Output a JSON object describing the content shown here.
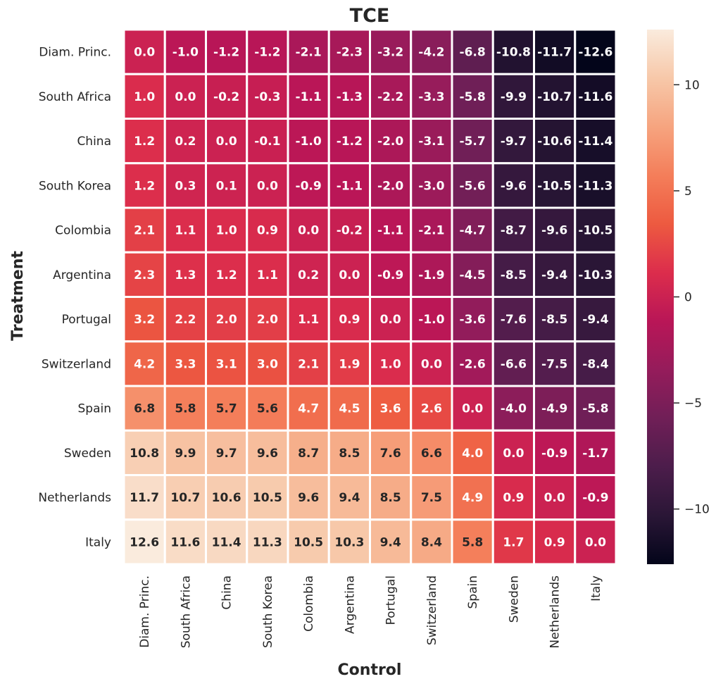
{
  "chart_data": {
    "type": "heatmap",
    "title": "TCE",
    "xlabel": "Control",
    "ylabel": "Treatment",
    "rows": [
      "Diam. Princ.",
      "South Africa",
      "China",
      "South Korea",
      "Colombia",
      "Argentina",
      "Portugal",
      "Switzerland",
      "Spain",
      "Sweden",
      "Netherlands",
      "Italy"
    ],
    "columns": [
      "Diam. Princ.",
      "South Africa",
      "China",
      "South Korea",
      "Colombia",
      "Argentina",
      "Portugal",
      "Switzerland",
      "Spain",
      "Sweden",
      "Netherlands",
      "Italy"
    ],
    "values": [
      [
        0.0,
        -1.0,
        -1.2,
        -1.2,
        -2.1,
        -2.3,
        -3.2,
        -4.2,
        -6.8,
        -10.8,
        -11.7,
        -12.6
      ],
      [
        1.0,
        0.0,
        -0.2,
        -0.3,
        -1.1,
        -1.3,
        -2.2,
        -3.3,
        -5.8,
        -9.9,
        -10.7,
        -11.6
      ],
      [
        1.2,
        0.2,
        0.0,
        -0.1,
        -1.0,
        -1.2,
        -2.0,
        -3.1,
        -5.7,
        -9.7,
        -10.6,
        -11.4
      ],
      [
        1.2,
        0.3,
        0.1,
        0.0,
        -0.9,
        -1.1,
        -2.0,
        -3.0,
        -5.6,
        -9.6,
        -10.5,
        -11.3
      ],
      [
        2.1,
        1.1,
        1.0,
        0.9,
        0.0,
        -0.2,
        -1.1,
        -2.1,
        -4.7,
        -8.7,
        -9.6,
        -10.5
      ],
      [
        2.3,
        1.3,
        1.2,
        1.1,
        0.2,
        0.0,
        -0.9,
        -1.9,
        -4.5,
        -8.5,
        -9.4,
        -10.3
      ],
      [
        3.2,
        2.2,
        2.0,
        2.0,
        1.1,
        0.9,
        0.0,
        -1.0,
        -3.6,
        -7.6,
        -8.5,
        -9.4
      ],
      [
        4.2,
        3.3,
        3.1,
        3.0,
        2.1,
        1.9,
        1.0,
        0.0,
        -2.6,
        -6.6,
        -7.5,
        -8.4
      ],
      [
        6.8,
        5.8,
        5.7,
        5.6,
        4.7,
        4.5,
        3.6,
        2.6,
        0.0,
        -4.0,
        -4.9,
        -5.8
      ],
      [
        10.8,
        9.9,
        9.7,
        9.6,
        8.7,
        8.5,
        7.6,
        6.6,
        4.0,
        0.0,
        -0.9,
        -1.7
      ],
      [
        11.7,
        10.7,
        10.6,
        10.5,
        9.6,
        9.4,
        8.5,
        7.5,
        4.9,
        0.9,
        0.0,
        -0.9
      ],
      [
        12.6,
        11.6,
        11.4,
        11.3,
        10.5,
        10.3,
        9.4,
        8.4,
        5.8,
        1.7,
        0.9,
        0.0
      ]
    ],
    "value_range": [
      -12.6,
      12.6
    ],
    "colorbar_ticks": [
      10,
      5,
      0,
      -5,
      -10
    ],
    "colormap": "rocket",
    "colormap_stops": [
      "#03051a",
      "#2a1636",
      "#4c1d4b",
      "#701f57",
      "#951c5b",
      "#b91657",
      "#dc2d4c",
      "#ed5a40",
      "#f47e5a",
      "#f6a47f",
      "#f7c8a9",
      "#faebdd"
    ],
    "cell_text_color_dark": "#262626",
    "cell_text_color_light": "#ffffff",
    "grid_line_color": "#ffffff",
    "legend": "colorbar right"
  }
}
